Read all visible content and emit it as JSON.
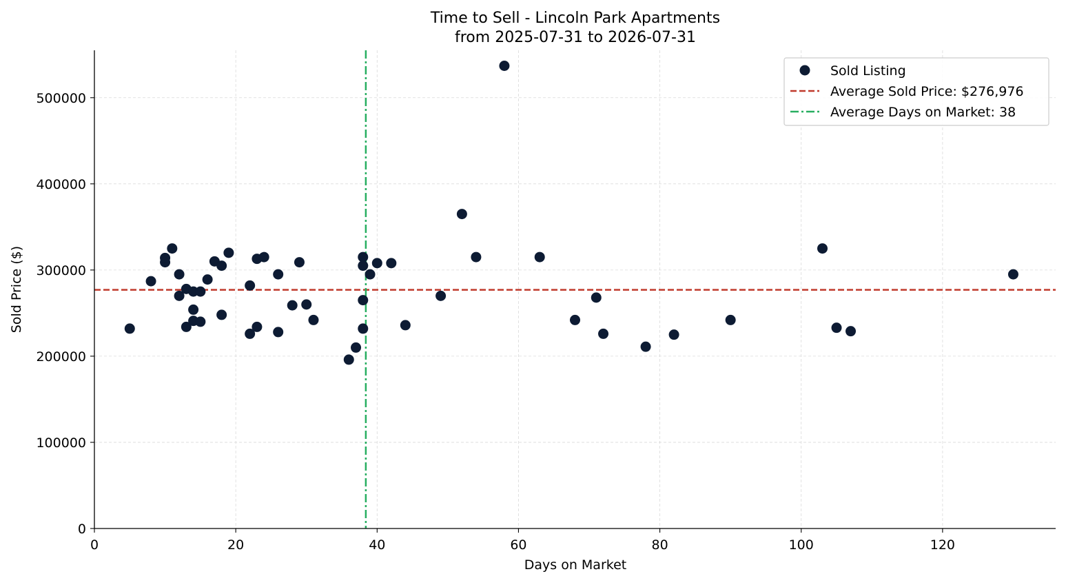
{
  "chart_data": {
    "type": "scatter",
    "title": "Time to Sell - Lincoln Park Apartments",
    "subtitle": "from 2025-07-31 to 2026-07-31",
    "xlabel": "Days on Market",
    "ylabel": "Sold Price ($)",
    "xlim": [
      0,
      136
    ],
    "ylim": [
      0,
      555000
    ],
    "xticks": [
      0,
      20,
      40,
      60,
      80,
      100,
      120
    ],
    "yticks": [
      0,
      100000,
      200000,
      300000,
      400000,
      500000
    ],
    "grid": true,
    "legend_position": "top-right",
    "series": [
      {
        "name": "Sold Listing",
        "color": "#0d1b33",
        "points": [
          [
            5,
            232000
          ],
          [
            8,
            287000
          ],
          [
            10,
            309000
          ],
          [
            10,
            314000
          ],
          [
            11,
            325000
          ],
          [
            12,
            295000
          ],
          [
            12,
            270000
          ],
          [
            13,
            278000
          ],
          [
            13,
            234000
          ],
          [
            14,
            275000
          ],
          [
            14,
            254000
          ],
          [
            14,
            241000
          ],
          [
            15,
            275000
          ],
          [
            15,
            240000
          ],
          [
            16,
            289000
          ],
          [
            17,
            310000
          ],
          [
            18,
            305000
          ],
          [
            18,
            248000
          ],
          [
            19,
            320000
          ],
          [
            22,
            282000
          ],
          [
            22,
            226000
          ],
          [
            23,
            313000
          ],
          [
            23,
            234000
          ],
          [
            24,
            315000
          ],
          [
            26,
            295000
          ],
          [
            26,
            228000
          ],
          [
            28,
            259000
          ],
          [
            29,
            309000
          ],
          [
            30,
            260000
          ],
          [
            31,
            242000
          ],
          [
            36,
            196000
          ],
          [
            37,
            210000
          ],
          [
            38,
            315000
          ],
          [
            38,
            305000
          ],
          [
            38,
            265000
          ],
          [
            38,
            232000
          ],
          [
            39,
            295000
          ],
          [
            40,
            308000
          ],
          [
            42,
            308000
          ],
          [
            44,
            236000
          ],
          [
            49,
            270000
          ],
          [
            52,
            365000
          ],
          [
            54,
            315000
          ],
          [
            58,
            537000
          ],
          [
            63,
            315000
          ],
          [
            68,
            242000
          ],
          [
            71,
            268000
          ],
          [
            72,
            226000
          ],
          [
            78,
            211000
          ],
          [
            82,
            225000
          ],
          [
            90,
            242000
          ],
          [
            103,
            325000
          ],
          [
            105,
            233000
          ],
          [
            107,
            229000
          ],
          [
            130,
            295000
          ]
        ]
      }
    ],
    "reference_lines": [
      {
        "name": "Average Sold Price: $276,976",
        "orientation": "horizontal",
        "value": 276976,
        "color": "#c0392b",
        "style": "dashed"
      },
      {
        "name": "Average Days on Market: 38",
        "orientation": "vertical",
        "value": 38.4,
        "color": "#27ae60",
        "style": "dashdot"
      }
    ]
  }
}
